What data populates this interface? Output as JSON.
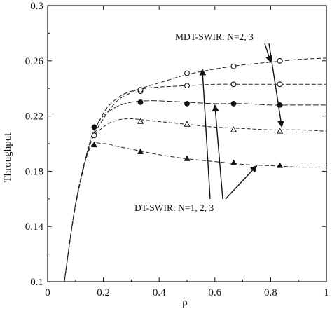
{
  "chart_data": {
    "type": "line",
    "title": "",
    "xlabel": "ρ",
    "ylabel": "Throughput",
    "xlim": [
      0,
      1
    ],
    "ylim": [
      0.1,
      0.3
    ],
    "x_ticks": [
      0,
      0.2,
      0.4,
      0.6,
      0.8,
      1
    ],
    "x_tick_labels": [
      "0",
      "0.2",
      "0.4",
      "0.6",
      "0.8",
      "1"
    ],
    "y_ticks": [
      0.1,
      0.14,
      0.18,
      0.22,
      0.26,
      0.3
    ],
    "y_tick_labels": [
      "0.1",
      "0.14",
      "0.18",
      "0.22",
      "0.26",
      "0.3"
    ],
    "grid": false,
    "series": [
      {
        "marker": "open-circle",
        "curve": [
          [
            0.06,
            0.1
          ],
          [
            0.1,
            0.155
          ],
          [
            0.15,
            0.198
          ],
          [
            0.2,
            0.218
          ],
          [
            0.25,
            0.231
          ],
          [
            0.3,
            0.237
          ],
          [
            0.35,
            0.241
          ],
          [
            0.4,
            0.244
          ],
          [
            0.5,
            0.25
          ],
          [
            0.6,
            0.254
          ],
          [
            0.7,
            0.257
          ],
          [
            0.8,
            0.259
          ],
          [
            0.9,
            0.261
          ],
          [
            1,
            0.262
          ]
        ],
        "points": [
          [
            0.167,
            0.206
          ],
          [
            0.333,
            0.238
          ],
          [
            0.5,
            0.251
          ],
          [
            0.667,
            0.256
          ],
          [
            0.833,
            0.26
          ]
        ]
      },
      {
        "marker": "open-circle",
        "curve": [
          [
            0.06,
            0.1
          ],
          [
            0.1,
            0.155
          ],
          [
            0.15,
            0.198
          ],
          [
            0.2,
            0.222
          ],
          [
            0.25,
            0.233
          ],
          [
            0.3,
            0.238
          ],
          [
            0.35,
            0.24
          ],
          [
            0.4,
            0.241
          ],
          [
            0.5,
            0.242
          ],
          [
            0.6,
            0.243
          ],
          [
            0.7,
            0.243
          ],
          [
            0.8,
            0.243
          ],
          [
            0.9,
            0.243
          ],
          [
            1,
            0.243
          ]
        ],
        "points": [
          [
            0.333,
            0.239
          ],
          [
            0.5,
            0.242
          ],
          [
            0.667,
            0.243
          ],
          [
            0.833,
            0.243
          ]
        ]
      },
      {
        "marker": "filled-circle",
        "curve": [
          [
            0.06,
            0.1
          ],
          [
            0.1,
            0.156
          ],
          [
            0.15,
            0.2
          ],
          [
            0.17,
            0.211
          ],
          [
            0.2,
            0.22
          ],
          [
            0.25,
            0.227
          ],
          [
            0.3,
            0.23
          ],
          [
            0.35,
            0.231
          ],
          [
            0.4,
            0.231
          ],
          [
            0.5,
            0.23
          ],
          [
            0.6,
            0.229
          ],
          [
            0.7,
            0.229
          ],
          [
            0.8,
            0.228
          ],
          [
            0.9,
            0.228
          ],
          [
            1,
            0.228
          ]
        ],
        "points": [
          [
            0.167,
            0.212
          ],
          [
            0.333,
            0.23
          ],
          [
            0.5,
            0.229
          ],
          [
            0.667,
            0.229
          ],
          [
            0.833,
            0.228
          ]
        ]
      },
      {
        "marker": "open-triangle",
        "curve": [
          [
            0.06,
            0.1
          ],
          [
            0.1,
            0.156
          ],
          [
            0.15,
            0.199
          ],
          [
            0.2,
            0.212
          ],
          [
            0.25,
            0.217
          ],
          [
            0.3,
            0.218
          ],
          [
            0.35,
            0.217
          ],
          [
            0.4,
            0.216
          ],
          [
            0.5,
            0.214
          ],
          [
            0.6,
            0.212
          ],
          [
            0.7,
            0.211
          ],
          [
            0.8,
            0.21
          ],
          [
            0.9,
            0.21
          ],
          [
            1,
            0.209
          ]
        ],
        "points": [
          [
            0.333,
            0.216
          ],
          [
            0.5,
            0.214
          ],
          [
            0.667,
            0.21
          ],
          [
            0.833,
            0.209
          ]
        ]
      },
      {
        "marker": "filled-triangle",
        "curve": [
          [
            0.06,
            0.1
          ],
          [
            0.1,
            0.156
          ],
          [
            0.15,
            0.196
          ],
          [
            0.2,
            0.2
          ],
          [
            0.25,
            0.198
          ],
          [
            0.3,
            0.196
          ],
          [
            0.35,
            0.194
          ],
          [
            0.4,
            0.192
          ],
          [
            0.5,
            0.189
          ],
          [
            0.6,
            0.187
          ],
          [
            0.7,
            0.185
          ],
          [
            0.8,
            0.184
          ],
          [
            0.9,
            0.183
          ],
          [
            1,
            0.183
          ]
        ],
        "points": [
          [
            0.167,
            0.199
          ],
          [
            0.333,
            0.194
          ],
          [
            0.5,
            0.189
          ],
          [
            0.667,
            0.186
          ],
          [
            0.833,
            0.184
          ]
        ]
      }
    ],
    "annotations": [
      {
        "text": "MDT-SWIR: N=2, 3",
        "arrow_targets": [
          [
            0.8,
            0.257
          ],
          [
            0.84,
            0.21
          ]
        ]
      },
      {
        "text": "DT-SWIR: N=1, 2, 3",
        "arrow_targets": [
          [
            0.555,
            0.256
          ],
          [
            0.6,
            0.23
          ],
          [
            0.75,
            0.186
          ]
        ]
      }
    ]
  }
}
